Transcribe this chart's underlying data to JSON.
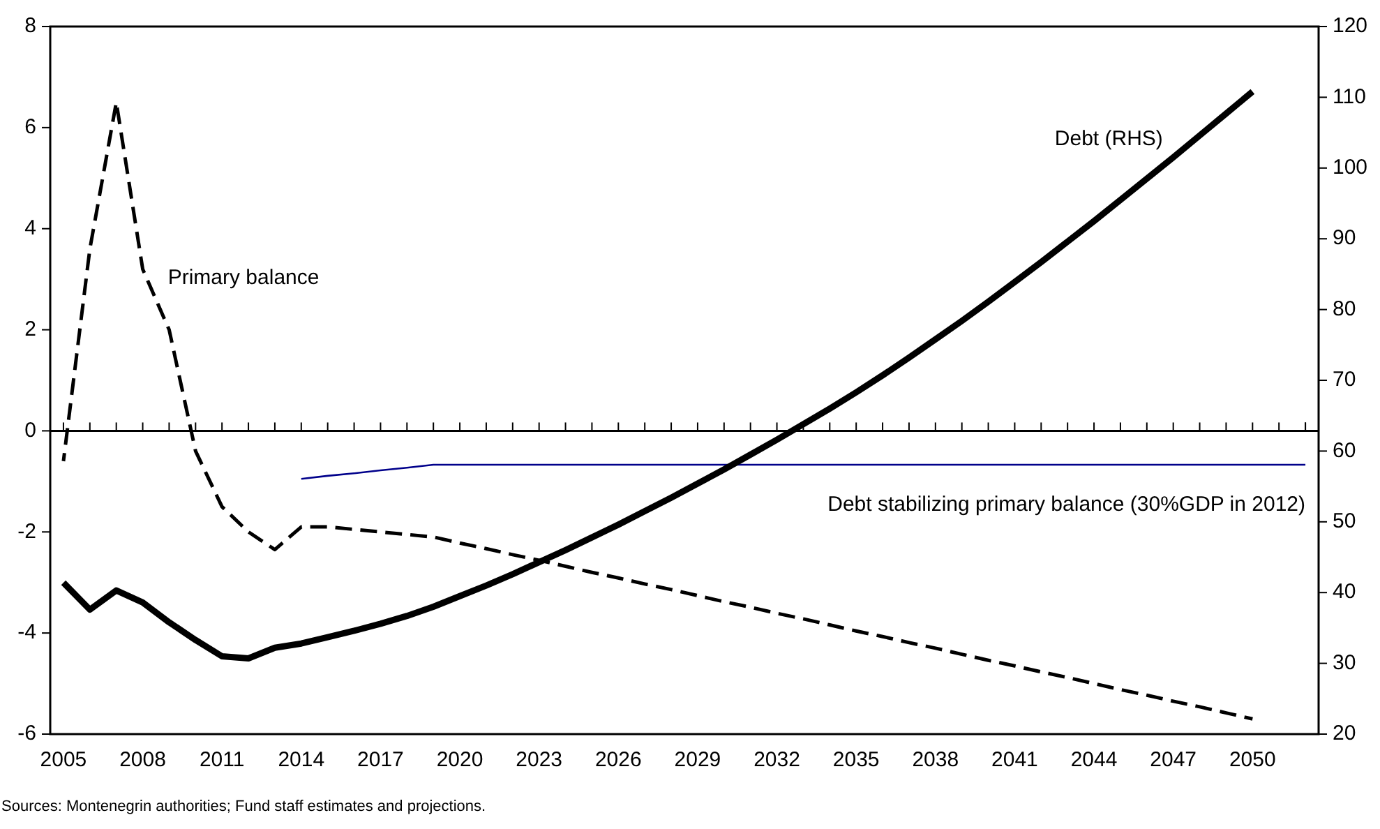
{
  "chart_data": {
    "type": "line",
    "x": [
      2005,
      2006,
      2007,
      2008,
      2009,
      2010,
      2011,
      2012,
      2013,
      2014,
      2015,
      2016,
      2017,
      2018,
      2019,
      2020,
      2021,
      2022,
      2023,
      2024,
      2025,
      2026,
      2027,
      2028,
      2029,
      2030,
      2031,
      2032,
      2033,
      2034,
      2035,
      2036,
      2037,
      2038,
      2039,
      2040,
      2041,
      2042,
      2043,
      2044,
      2045,
      2046,
      2047,
      2048,
      2049,
      2050,
      2051,
      2052
    ],
    "series": [
      {
        "name": "Primary balance",
        "color": "#000000",
        "line_style": "dashed",
        "values": [
          -0.6,
          3.6,
          6.5,
          3.2,
          2.0,
          -0.4,
          -1.5,
          -2.0,
          -2.35,
          -1.9,
          -1.9,
          -1.95,
          -2.0,
          -2.05,
          -2.1,
          -2.22,
          -2.33,
          -2.45,
          -2.56,
          -2.68,
          -2.8,
          -2.91,
          -3.03,
          -3.14,
          -3.26,
          -3.38,
          -3.49,
          -3.61,
          -3.72,
          -3.84,
          -3.96,
          -4.07,
          -4.19,
          -4.3,
          -4.42,
          -4.54,
          -4.65,
          -4.77,
          -4.88,
          -5.0,
          -5.12,
          -5.23,
          -5.35,
          -5.46,
          -5.58,
          -5.7,
          null,
          null
        ]
      },
      {
        "name": "Debt (RHS)",
        "color": "#000000",
        "line_style": "solid",
        "axis": "y2",
        "values": [
          41.4,
          37.6,
          40.3,
          38.6,
          35.8,
          33.3,
          31.0,
          30.7,
          32.2,
          32.8,
          33.7,
          34.6,
          35.6,
          36.7,
          38.0,
          39.5,
          41.0,
          42.6,
          44.3,
          46.0,
          47.8,
          49.6,
          51.5,
          53.4,
          55.4,
          57.4,
          59.5,
          61.6,
          63.8,
          66.0,
          68.3,
          70.7,
          73.2,
          75.8,
          78.4,
          81.1,
          83.9,
          86.7,
          89.6,
          92.5,
          95.5,
          98.5,
          101.5,
          104.6,
          107.7,
          110.8,
          null,
          null
        ]
      },
      {
        "name": "Debt stabilizing primary balance (30%GDP in 2012)",
        "color": "#00008b",
        "line_style": "solid",
        "values": [
          null,
          null,
          null,
          null,
          null,
          null,
          null,
          null,
          null,
          -0.95,
          -0.89,
          -0.84,
          -0.78,
          -0.73,
          -0.67,
          -0.67,
          -0.67,
          -0.67,
          -0.67,
          -0.67,
          -0.67,
          -0.67,
          -0.67,
          -0.67,
          -0.67,
          -0.67,
          -0.67,
          -0.67,
          -0.67,
          -0.67,
          -0.67,
          -0.67,
          -0.67,
          -0.67,
          -0.67,
          -0.67,
          -0.67,
          -0.67,
          -0.67,
          -0.67,
          -0.67,
          -0.67,
          -0.67,
          -0.67,
          -0.67,
          -0.67,
          -0.67,
          -0.67
        ]
      }
    ],
    "xlim": [
      2004.5,
      2052.5
    ],
    "xticks": [
      2005,
      {
        "value": 2006,
        "label": null
      },
      {
        "value": 2007,
        "label": null
      },
      2008,
      {
        "value": 2009,
        "label": null
      },
      {
        "value": 2010,
        "label": null
      },
      2011,
      {
        "value": 2012,
        "label": null
      },
      {
        "value": 2013,
        "label": null
      },
      2014,
      {
        "value": 2015,
        "label": null
      },
      {
        "value": 2016,
        "label": null
      },
      2017,
      {
        "value": 2018,
        "label": null
      },
      {
        "value": 2019,
        "label": null
      },
      2020,
      {
        "value": 2021,
        "label": null
      },
      {
        "value": 2022,
        "label": null
      },
      2023,
      {
        "value": 2024,
        "label": null
      },
      {
        "value": 2025,
        "label": null
      },
      2026,
      {
        "value": 2027,
        "label": null
      },
      {
        "value": 2028,
        "label": null
      },
      2029,
      {
        "value": 2030,
        "label": null
      },
      {
        "value": 2031,
        "label": null
      },
      2032,
      {
        "value": 2033,
        "label": null
      },
      {
        "value": 2034,
        "label": null
      },
      2035,
      {
        "value": 2036,
        "label": null
      },
      {
        "value": 2037,
        "label": null
      },
      2038,
      {
        "value": 2039,
        "label": null
      },
      {
        "value": 2040,
        "label": null
      },
      2041,
      {
        "value": 2042,
        "label": null
      },
      {
        "value": 2043,
        "label": null
      },
      2044,
      {
        "value": 2045,
        "label": null
      },
      {
        "value": 2046,
        "label": null
      },
      2047,
      {
        "value": 2048,
        "label": null
      },
      {
        "value": 2049,
        "label": null
      },
      2050,
      {
        "value": 2051,
        "label": null
      },
      {
        "value": 2052,
        "label": null
      }
    ],
    "ylim": [
      -6,
      8
    ],
    "yticks": [
      -6,
      -4,
      -2,
      0,
      2,
      4,
      6,
      8
    ],
    "y2lim": [
      20,
      120
    ],
    "y2ticks": [
      20,
      30,
      40,
      50,
      60,
      70,
      80,
      90,
      100,
      110,
      120
    ],
    "ref_lines": [
      {
        "axis": "y",
        "value": 0
      }
    ],
    "annotations": [
      "Sources: Montenegrin authorities; Fund staff estimates and projections."
    ],
    "grid": false,
    "legend": false,
    "marker": "none"
  }
}
